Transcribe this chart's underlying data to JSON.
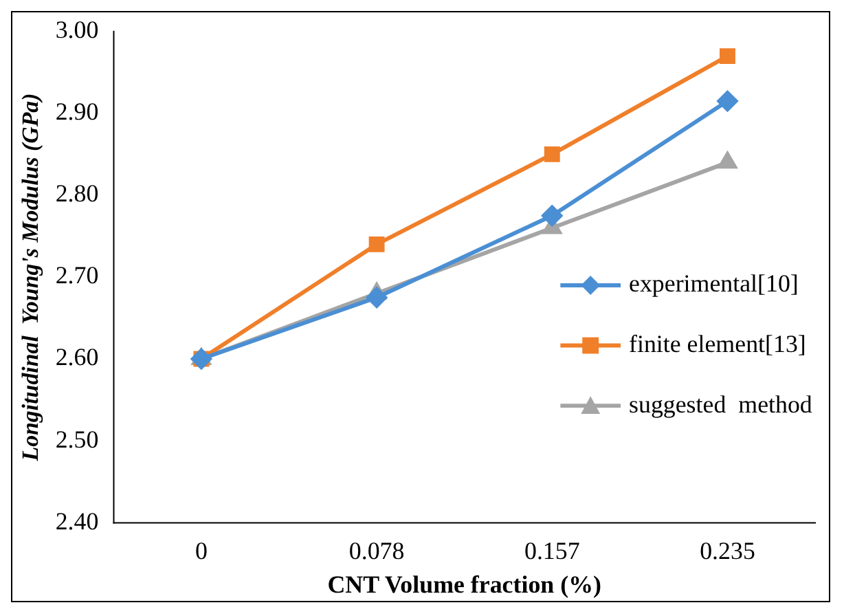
{
  "chart_data": {
    "type": "line",
    "xlabel": "CNT Volume fraction (%)",
    "ylabel": "Longitudinal  Young's Modulus (GPa)",
    "categories": [
      "0",
      "0.078",
      "0.157",
      "0.235"
    ],
    "ylim": [
      2.4,
      3.0
    ],
    "yticks": [
      {
        "value": 2.4,
        "label": "2.40"
      },
      {
        "value": 2.5,
        "label": "2.50"
      },
      {
        "value": 2.6,
        "label": "2.60"
      },
      {
        "value": 2.7,
        "label": "2.70"
      },
      {
        "value": 2.8,
        "label": "2.80"
      },
      {
        "value": 2.9,
        "label": "2.90"
      },
      {
        "value": 3.0,
        "label": "3.00"
      }
    ],
    "grid": false,
    "legend": "right",
    "series": [
      {
        "name": "experimental[10]",
        "color": "#4a8fd4",
        "marker": "diamond",
        "values": [
          2.6,
          2.675,
          2.775,
          2.915
        ]
      },
      {
        "name": "finite element[13]",
        "color": "#f07f2a",
        "marker": "square",
        "values": [
          2.6,
          2.74,
          2.85,
          2.97
        ]
      },
      {
        "name": "suggested  method",
        "color": "#a5a5a5",
        "marker": "triangle",
        "values": [
          2.6,
          2.68,
          2.76,
          2.84
        ]
      }
    ]
  }
}
